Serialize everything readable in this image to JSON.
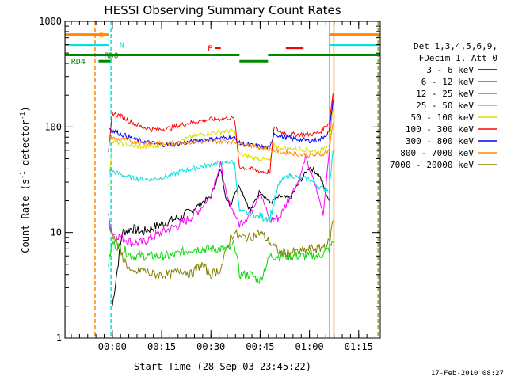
{
  "chart_data": {
    "type": "line",
    "title": "HESSI Observing Summary Count Rates",
    "xlabel": "Start Time (28-Sep-03 23:45:22)",
    "ylabel_main": "Count Rate (s",
    "ylabel_sup1": "-1",
    "ylabel_mid": " detector",
    "ylabel_sup2": "-1",
    "ylabel_end": ")",
    "yscale": "log",
    "ylim": [
      1,
      1000
    ],
    "xlim": [
      -0.2406,
      1.3594
    ],
    "x_unit": "hours after 00:00",
    "x_ticks": [
      {
        "v": 0.0,
        "label": "00:00"
      },
      {
        "v": 0.25,
        "label": "00:15"
      },
      {
        "v": 0.5,
        "label": "00:30"
      },
      {
        "v": 0.75,
        "label": "00:45"
      },
      {
        "v": 1.0,
        "label": "01:00"
      },
      {
        "v": 1.25,
        "label": "01:15"
      }
    ],
    "y_ticks": [
      {
        "v": 1,
        "label": "1"
      },
      {
        "v": 10,
        "label": "10"
      },
      {
        "v": 100,
        "label": "100"
      },
      {
        "v": 1000,
        "label": "1000"
      }
    ],
    "legend": {
      "header1": "Det 1,3,4,5,6,9,",
      "header2": "FDecim 1, Att 0",
      "placement": "right"
    },
    "series": [
      {
        "name": "3 - 6 keV",
        "color": "#000000",
        "x": [
          0.0,
          0.05,
          0.1,
          0.15,
          0.2,
          0.25,
          0.3,
          0.35,
          0.4,
          0.45,
          0.5,
          0.52,
          0.55,
          0.58,
          0.6,
          0.62,
          0.645,
          0.7,
          0.75,
          0.8,
          0.85,
          0.9,
          0.95,
          1.0,
          1.05,
          1.08,
          1.1
        ],
        "y": [
          2,
          10,
          11,
          10,
          11,
          12,
          13,
          14,
          16,
          19,
          22,
          28,
          40,
          20,
          18,
          24,
          28,
          16,
          25,
          19,
          22,
          21,
          30,
          42,
          35,
          25,
          20
        ]
      },
      {
        "name": "6 - 12 keV",
        "color": "#ff00ff",
        "x": [
          -0.02,
          0.0,
          0.05,
          0.1,
          0.15,
          0.2,
          0.25,
          0.3,
          0.35,
          0.4,
          0.45,
          0.5,
          0.52,
          0.55,
          0.58,
          0.6,
          0.645,
          0.7,
          0.75,
          0.8,
          0.85,
          0.9,
          0.95,
          0.98,
          1.0,
          1.03,
          1.07,
          1.1,
          1.12
        ],
        "y": [
          14,
          10,
          9,
          8,
          8,
          9,
          10,
          11,
          12,
          14,
          17,
          22,
          30,
          45,
          22,
          18,
          12,
          15,
          24,
          13,
          14,
          22,
          32,
          52,
          40,
          28,
          15,
          60,
          200
        ]
      },
      {
        "name": "12 - 25 keV",
        "color": "#00dd00",
        "x": [
          -0.02,
          0.0,
          0.05,
          0.1,
          0.2,
          0.3,
          0.4,
          0.5,
          0.6,
          0.62,
          0.645,
          0.7,
          0.75,
          0.8,
          0.9,
          1.0,
          1.05,
          1.1,
          1.12
        ],
        "y": [
          5,
          8,
          7,
          6,
          6,
          6,
          7,
          7,
          7,
          8,
          4,
          4,
          3.5,
          6,
          6,
          6,
          6,
          7,
          8
        ]
      },
      {
        "name": "25 - 50 keV",
        "color": "#00e0e0",
        "x": [
          -0.02,
          0.0,
          0.05,
          0.1,
          0.15,
          0.2,
          0.25,
          0.3,
          0.35,
          0.4,
          0.45,
          0.5,
          0.55,
          0.6,
          0.62,
          0.645,
          0.7,
          0.75,
          0.8,
          0.85,
          0.9,
          0.95,
          1.0,
          1.05,
          1.1,
          1.12
        ],
        "y": [
          40,
          38,
          35,
          33,
          32,
          32,
          33,
          35,
          38,
          40,
          42,
          44,
          45,
          47,
          45,
          16,
          15,
          14,
          14,
          30,
          35,
          33,
          32,
          27,
          25,
          60
        ]
      },
      {
        "name": "50 - 100 keV",
        "color": "#dddd00",
        "x": [
          -0.02,
          0.0,
          0.05,
          0.1,
          0.15,
          0.2,
          0.25,
          0.3,
          0.35,
          0.4,
          0.45,
          0.5,
          0.55,
          0.6,
          0.62,
          0.645,
          0.7,
          0.75,
          0.8,
          0.82,
          0.85,
          0.9,
          0.95,
          1.0,
          1.05,
          1.1,
          1.12
        ],
        "y": [
          28,
          72,
          70,
          66,
          65,
          65,
          67,
          70,
          75,
          80,
          85,
          88,
          90,
          92,
          90,
          55,
          52,
          50,
          48,
          68,
          64,
          62,
          62,
          60,
          58,
          70,
          150
        ]
      },
      {
        "name": "100 - 300 keV",
        "color": "#ff0000",
        "x": [
          -0.02,
          0.0,
          0.05,
          0.1,
          0.15,
          0.2,
          0.25,
          0.3,
          0.35,
          0.4,
          0.45,
          0.5,
          0.55,
          0.6,
          0.62,
          0.645,
          0.7,
          0.75,
          0.8,
          0.82,
          0.85,
          0.9,
          0.95,
          1.0,
          1.05,
          1.1,
          1.12
        ],
        "y": [
          55,
          135,
          125,
          110,
          100,
          95,
          95,
          98,
          105,
          110,
          115,
          118,
          120,
          122,
          118,
          42,
          40,
          38,
          37,
          100,
          90,
          85,
          85,
          85,
          88,
          110,
          210
        ]
      },
      {
        "name": "300 - 800 keV",
        "color": "#0000ff",
        "x": [
          -0.02,
          0.0,
          0.05,
          0.1,
          0.15,
          0.2,
          0.25,
          0.3,
          0.35,
          0.4,
          0.45,
          0.5,
          0.55,
          0.6,
          0.62,
          0.645,
          0.7,
          0.75,
          0.8,
          0.82,
          0.85,
          0.9,
          0.95,
          1.0,
          1.05,
          1.1,
          1.12
        ],
        "y": [
          100,
          92,
          85,
          78,
          73,
          70,
          68,
          68,
          70,
          72,
          75,
          77,
          78,
          80,
          78,
          70,
          67,
          65,
          63,
          88,
          82,
          78,
          76,
          74,
          75,
          90,
          180
        ]
      },
      {
        "name": "800 - 7000 keV",
        "color": "#ff8800",
        "x": [
          -0.02,
          0.0,
          0.05,
          0.1,
          0.15,
          0.2,
          0.25,
          0.3,
          0.35,
          0.4,
          0.45,
          0.5,
          0.55,
          0.6,
          0.62,
          0.645,
          0.7,
          0.75,
          0.8,
          0.85,
          0.9,
          0.95,
          1.0,
          1.05,
          1.1,
          1.12
        ],
        "y": [
          80,
          78,
          76,
          73,
          71,
          70,
          69,
          70,
          71,
          72,
          72,
          73,
          73,
          73,
          72,
          70,
          67,
          64,
          61,
          58,
          57,
          55,
          54,
          54,
          60,
          110
        ]
      },
      {
        "name": "7000 - 20000 keV",
        "color": "#808000",
        "x": [
          -0.02,
          0.0,
          0.05,
          0.1,
          0.15,
          0.2,
          0.25,
          0.3,
          0.35,
          0.4,
          0.45,
          0.5,
          0.55,
          0.6,
          0.62,
          0.645,
          0.7,
          0.75,
          0.8,
          0.85,
          0.9,
          0.95,
          1.0,
          1.05,
          1.1,
          1.12
        ],
        "y": [
          12,
          10,
          6,
          4,
          4.5,
          4,
          4,
          4,
          4.5,
          4,
          5,
          4,
          4.5,
          9,
          10,
          9,
          9,
          10,
          8,
          6.5,
          6.5,
          6.5,
          7,
          7,
          8,
          13
        ]
      }
    ],
    "bars": [
      {
        "label": "S",
        "color": "#ff8800",
        "level": 750,
        "segments": [
          [
            -0.2406,
            -0.02
          ],
          [
            1.105,
            1.3594
          ]
        ]
      },
      {
        "label": "N",
        "color": "#00e0e0",
        "level": 600,
        "segments": [
          [
            -0.2406,
            -0.02
          ],
          [
            1.105,
            1.3594
          ]
        ]
      },
      {
        "label": "F",
        "color": "#ff0000",
        "level": 560,
        "segments": [
          [
            0.52,
            0.55
          ],
          [
            0.88,
            0.97
          ]
        ]
      },
      {
        "label": "RD0",
        "color": "#008800",
        "level": 480,
        "segments": [
          [
            -0.2406,
            0.5
          ],
          [
            0.5,
            0.645
          ],
          [
            0.79,
            1.3594
          ]
        ]
      },
      {
        "label": "RD4",
        "color": "#008800",
        "level": 420,
        "segments": [
          [
            -0.07,
            -0.01
          ],
          [
            0.645,
            0.79
          ]
        ]
      }
    ],
    "vlines": [
      {
        "color": "#ff8800",
        "x": -0.088,
        "style": "dashed"
      },
      {
        "color": "#00e0e0",
        "x": -0.007,
        "style": "dashed"
      },
      {
        "color": "#00e0e0",
        "x": 1.102,
        "style": "solid"
      },
      {
        "color": "#ff8800",
        "x": 1.124,
        "style": "solid"
      },
      {
        "color": "#00e0e0",
        "x": 1.348,
        "style": "dashed"
      },
      {
        "color": "#ff8800",
        "x": 1.352,
        "style": "dashed"
      },
      {
        "color": "#00e0e0",
        "x": -0.2406,
        "style": "solid"
      }
    ],
    "grid": false,
    "timestamp": "17-Feb-2010 08:27"
  }
}
